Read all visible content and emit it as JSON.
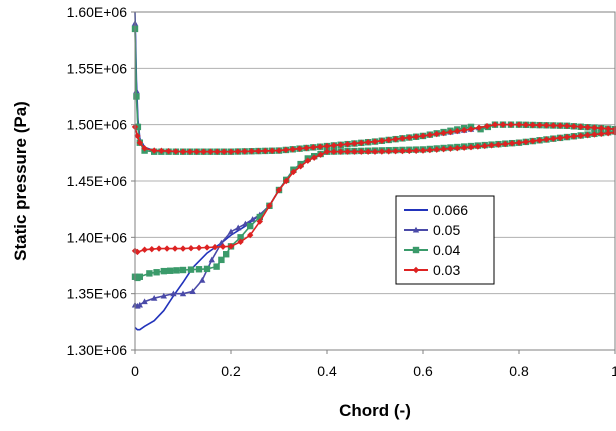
{
  "chart_data": {
    "type": "line",
    "title": "",
    "xlabel": "Chord (-)",
    "ylabel": "Static pressure (Pa)",
    "xlim": [
      0,
      1
    ],
    "ylim": [
      1300000,
      1600000
    ],
    "x_ticks": [
      0,
      0.2,
      0.4,
      0.6,
      0.8,
      1
    ],
    "x_tick_labels": [
      "0",
      "0.2",
      "0.4",
      "0.6",
      "0.8",
      "1"
    ],
    "y_ticks": [
      1300000,
      1350000,
      1400000,
      1450000,
      1500000,
      1550000,
      1600000
    ],
    "y_tick_labels": [
      "1.30E+06",
      "1.35E+06",
      "1.40E+06",
      "1.45E+06",
      "1.50E+06",
      "1.55E+06",
      "1.60E+06"
    ],
    "grid": "horizontal",
    "legend_position": "center-right",
    "series": [
      {
        "name": "0.066",
        "color": "#2233bb",
        "marker": "none",
        "upper": [
          [
            0,
            1600000
          ],
          [
            0.003,
            1540000
          ],
          [
            0.006,
            1505000
          ],
          [
            0.01,
            1488000
          ],
          [
            0.02,
            1480000
          ],
          [
            0.04,
            1477000
          ],
          [
            0.1,
            1476000
          ],
          [
            0.2,
            1476000
          ],
          [
            0.3,
            1477000
          ],
          [
            0.4,
            1481000
          ],
          [
            0.5,
            1485000
          ],
          [
            0.6,
            1490000
          ],
          [
            0.7,
            1496000
          ],
          [
            0.75,
            1500000
          ],
          [
            0.8,
            1500000
          ],
          [
            0.9,
            1499000
          ],
          [
            1.0,
            1496000
          ]
        ],
        "lower": [
          [
            0,
            1320000
          ],
          [
            0.005,
            1318000
          ],
          [
            0.01,
            1318000
          ],
          [
            0.02,
            1321000
          ],
          [
            0.04,
            1326000
          ],
          [
            0.06,
            1335000
          ],
          [
            0.08,
            1348000
          ],
          [
            0.1,
            1360000
          ],
          [
            0.12,
            1373000
          ],
          [
            0.15,
            1386000
          ],
          [
            0.18,
            1395000
          ],
          [
            0.2,
            1402000
          ],
          [
            0.23,
            1410000
          ],
          [
            0.26,
            1420000
          ],
          [
            0.28,
            1428000
          ],
          [
            0.3,
            1442000
          ],
          [
            0.33,
            1460000
          ],
          [
            0.36,
            1470000
          ],
          [
            0.4,
            1476000
          ],
          [
            0.5,
            1477000
          ],
          [
            0.6,
            1478000
          ],
          [
            0.7,
            1481000
          ],
          [
            0.8,
            1484000
          ],
          [
            0.9,
            1489000
          ],
          [
            1.0,
            1494000
          ]
        ]
      },
      {
        "name": "0.05",
        "color": "#4a4aa8",
        "marker": "triangle",
        "upper": [
          [
            0,
            1590000
          ],
          [
            0.003,
            1530000
          ],
          [
            0.006,
            1500000
          ],
          [
            0.01,
            1486000
          ],
          [
            0.02,
            1479000
          ],
          [
            0.04,
            1477000
          ],
          [
            0.1,
            1476000
          ],
          [
            0.2,
            1476000
          ],
          [
            0.3,
            1477000
          ],
          [
            0.4,
            1481000
          ],
          [
            0.5,
            1485000
          ],
          [
            0.6,
            1490000
          ],
          [
            0.7,
            1496000
          ],
          [
            0.75,
            1500000
          ],
          [
            0.8,
            1500000
          ],
          [
            0.9,
            1499000
          ],
          [
            1.0,
            1496000
          ]
        ],
        "lower": [
          [
            0,
            1340000
          ],
          [
            0.005,
            1339000
          ],
          [
            0.01,
            1340000
          ],
          [
            0.02,
            1343000
          ],
          [
            0.04,
            1346000
          ],
          [
            0.06,
            1348000
          ],
          [
            0.08,
            1350000
          ],
          [
            0.1,
            1350000
          ],
          [
            0.12,
            1352000
          ],
          [
            0.14,
            1362000
          ],
          [
            0.16,
            1380000
          ],
          [
            0.18,
            1395000
          ],
          [
            0.2,
            1405000
          ],
          [
            0.23,
            1412000
          ],
          [
            0.26,
            1420000
          ],
          [
            0.28,
            1428000
          ],
          [
            0.3,
            1442000
          ],
          [
            0.33,
            1460000
          ],
          [
            0.36,
            1470000
          ],
          [
            0.4,
            1476000
          ],
          [
            0.5,
            1477000
          ],
          [
            0.6,
            1478000
          ],
          [
            0.7,
            1481000
          ],
          [
            0.8,
            1484000
          ],
          [
            0.9,
            1489000
          ],
          [
            1.0,
            1494000
          ]
        ]
      },
      {
        "name": "0.04",
        "color": "#3a9a6a",
        "marker": "square",
        "upper": [
          [
            0,
            1585000
          ],
          [
            0.003,
            1525000
          ],
          [
            0.006,
            1498000
          ],
          [
            0.01,
            1484000
          ],
          [
            0.02,
            1477000
          ],
          [
            0.04,
            1476000
          ],
          [
            0.1,
            1476000
          ],
          [
            0.2,
            1476000
          ],
          [
            0.3,
            1477000
          ],
          [
            0.4,
            1481000
          ],
          [
            0.5,
            1485000
          ],
          [
            0.6,
            1490000
          ],
          [
            0.7,
            1498000
          ],
          [
            0.72,
            1496000
          ],
          [
            0.75,
            1500000
          ],
          [
            0.8,
            1500000
          ],
          [
            0.9,
            1499000
          ],
          [
            1.0,
            1496000
          ]
        ],
        "lower": [
          [
            0,
            1365000
          ],
          [
            0.005,
            1364000
          ],
          [
            0.01,
            1365000
          ],
          [
            0.03,
            1368000
          ],
          [
            0.06,
            1370000
          ],
          [
            0.1,
            1371000
          ],
          [
            0.15,
            1372000
          ],
          [
            0.17,
            1374000
          ],
          [
            0.18,
            1380000
          ],
          [
            0.19,
            1385000
          ],
          [
            0.2,
            1392000
          ],
          [
            0.22,
            1400000
          ],
          [
            0.24,
            1410000
          ],
          [
            0.26,
            1418000
          ],
          [
            0.28,
            1428000
          ],
          [
            0.3,
            1442000
          ],
          [
            0.33,
            1460000
          ],
          [
            0.36,
            1470000
          ],
          [
            0.4,
            1476000
          ],
          [
            0.5,
            1477000
          ],
          [
            0.6,
            1478000
          ],
          [
            0.7,
            1481000
          ],
          [
            0.8,
            1484000
          ],
          [
            0.9,
            1489000
          ],
          [
            1.0,
            1494000
          ]
        ]
      },
      {
        "name": "0.03",
        "color": "#dd2222",
        "marker": "diamond",
        "upper": [
          [
            0,
            1498000
          ],
          [
            0.005,
            1490000
          ],
          [
            0.01,
            1484000
          ],
          [
            0.02,
            1479000
          ],
          [
            0.04,
            1477000
          ],
          [
            0.1,
            1476000
          ],
          [
            0.2,
            1476000
          ],
          [
            0.3,
            1477000
          ],
          [
            0.4,
            1481000
          ],
          [
            0.5,
            1485000
          ],
          [
            0.6,
            1490000
          ],
          [
            0.7,
            1496000
          ],
          [
            0.75,
            1500000
          ],
          [
            0.8,
            1500000
          ],
          [
            0.9,
            1499000
          ],
          [
            1.0,
            1496000
          ]
        ],
        "lower": [
          [
            0,
            1388000
          ],
          [
            0.005,
            1387000
          ],
          [
            0.02,
            1389000
          ],
          [
            0.05,
            1390000
          ],
          [
            0.1,
            1390000
          ],
          [
            0.15,
            1391000
          ],
          [
            0.2,
            1392000
          ],
          [
            0.22,
            1396000
          ],
          [
            0.24,
            1402000
          ],
          [
            0.26,
            1414000
          ],
          [
            0.28,
            1428000
          ],
          [
            0.3,
            1442000
          ],
          [
            0.33,
            1458000
          ],
          [
            0.36,
            1468000
          ],
          [
            0.4,
            1476000
          ],
          [
            0.5,
            1476000
          ],
          [
            0.6,
            1477000
          ],
          [
            0.7,
            1480000
          ],
          [
            0.8,
            1484000
          ],
          [
            0.9,
            1489000
          ],
          [
            1.0,
            1493000
          ]
        ]
      }
    ]
  }
}
